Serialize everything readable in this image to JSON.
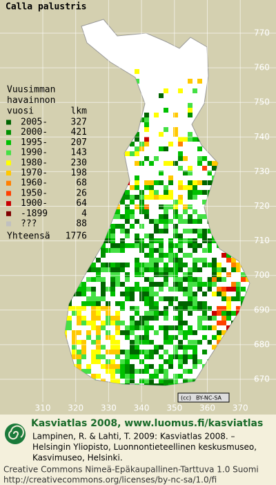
{
  "title": "Calla palustris",
  "legend": {
    "heading": [
      "Vuusimman",
      "havainnon"
    ],
    "col_year": "vuosi",
    "col_count": "lkm",
    "rows": [
      {
        "label": "2005-",
        "count": 327,
        "color": "#006400"
      },
      {
        "label": "2000-",
        "count": 421,
        "color": "#009000"
      },
      {
        "label": "1995-",
        "count": 207,
        "color": "#00c000"
      },
      {
        "label": "1990-",
        "count": 143,
        "color": "#44e044"
      },
      {
        "label": "1980-",
        "count": 230,
        "color": "#ffff00"
      },
      {
        "label": "1970-",
        "count": 198,
        "color": "#ffc800"
      },
      {
        "label": "1960-",
        "count": 68,
        "color": "#ff8000"
      },
      {
        "label": "1950-",
        "count": 26,
        "color": "#ff4000"
      },
      {
        "label": "1900-",
        "count": 64,
        "color": "#c80000"
      },
      {
        "label": "-1899",
        "count": 4,
        "color": "#800000"
      },
      {
        "label": "???",
        "count": 88,
        "color": "#c0c0c0"
      }
    ],
    "total_label": "Yhteensä",
    "total": 1776
  },
  "grid": {
    "y_labels": [
      770,
      760,
      750,
      740,
      730,
      720,
      710,
      700,
      690,
      680,
      670
    ],
    "x_labels": [
      310,
      320,
      330,
      340,
      350,
      360,
      370
    ]
  },
  "badge": {
    "icon": "(cc)",
    "text": "BY-NC-SA"
  },
  "footer": {
    "title": "Kasviatlas 2008, www.luomus.fi/kasviatlas",
    "citation": [
      "Lampinen, R. & Lahti, T. 2009: Kasviatlas 2008. –",
      "Helsingin Yliopisto, Luonnontieteellinen keskusmuseo,",
      "Kasvimuseo, Helsinki."
    ],
    "license": [
      "Creative Commons Nimeä-Epäkaupallinen-Tarttuva 1.0 Suomi",
      "http://creativecommons.org/licenses/by-nc-sa/1.0/fi"
    ]
  }
}
